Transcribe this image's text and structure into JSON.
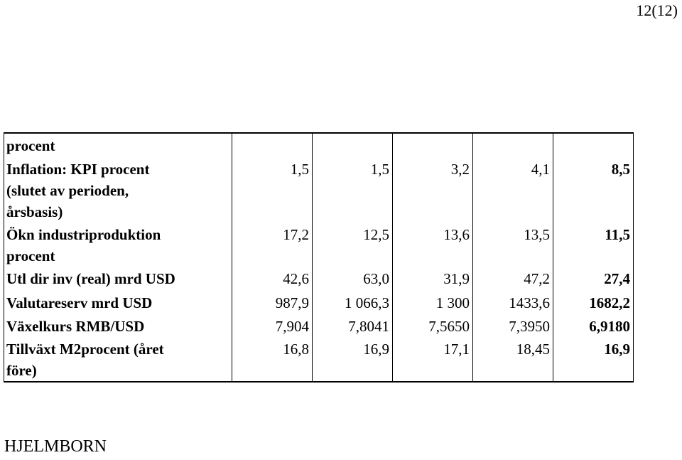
{
  "page_number": "12(12)",
  "table": {
    "rows": [
      {
        "label": [
          "procent"
        ]
      },
      {
        "label": [
          "Inflation: KPI procent",
          "(slutet av perioden,",
          "årsbasis)"
        ],
        "values": [
          "1,5",
          "1,5",
          "3,2",
          "4,1",
          "8,5"
        ]
      },
      {
        "label": [
          "Ökn industriproduktion",
          "procent"
        ],
        "values": [
          "17,2",
          "12,5",
          "13,6",
          "13,5",
          "11,5"
        ]
      },
      {
        "label": [
          "Utl dir inv (real) mrd USD"
        ],
        "values": [
          "42,6",
          "63,0",
          "31,9",
          "47,2",
          "27,4"
        ]
      },
      {
        "label": [
          "Valutareserv mrd USD"
        ],
        "values": [
          "987,9",
          "1 066,3",
          "1 300",
          "1433,6",
          "1682,2"
        ]
      },
      {
        "label": [
          "Växelkurs RMB/USD"
        ],
        "values": [
          "7,904",
          "7,8041",
          "7,5650",
          "7,3950",
          "6,9180"
        ]
      },
      {
        "label": [
          "Tillväxt M2procent (året",
          "före)"
        ],
        "values": [
          "16,8",
          "16,9",
          "17,1",
          "18,45",
          "16,9"
        ]
      }
    ]
  },
  "footer": "HJELMBORN"
}
